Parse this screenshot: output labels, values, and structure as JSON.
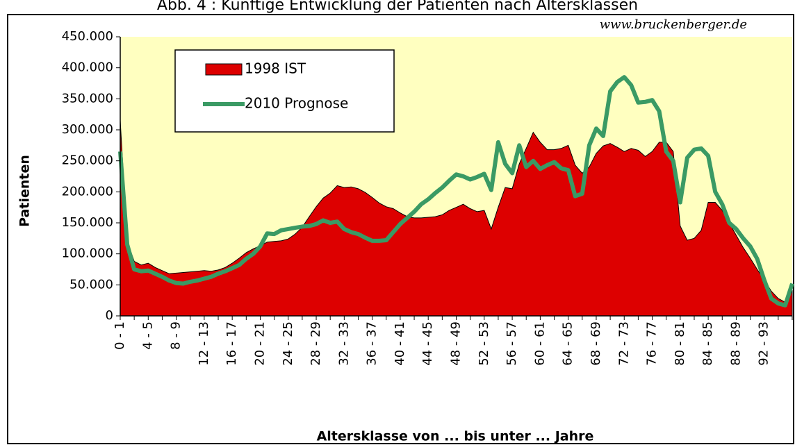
{
  "chart_data": {
    "type": "area",
    "title": "Abb. 4 : Künftige Entwicklung der Patienten nach Altersklassen",
    "watermark": "www.bruckenberger.de",
    "x_label": "Altersklasse von ... bis unter ... Jahre",
    "y_label": "Patienten",
    "categories": [
      "0 - 1",
      null,
      null,
      null,
      "4 - 5",
      null,
      null,
      null,
      "8 - 9",
      null,
      null,
      null,
      "12 - 13",
      null,
      null,
      null,
      "16 - 17",
      null,
      null,
      null,
      "20 - 21",
      null,
      null,
      null,
      "24 - 25",
      null,
      null,
      null,
      "28 - 29",
      null,
      null,
      null,
      "32 - 33",
      null,
      null,
      null,
      "36 - 37",
      null,
      null,
      null,
      "40 - 41",
      null,
      null,
      null,
      "44 - 45",
      null,
      null,
      null,
      "48 - 49",
      null,
      null,
      null,
      "52 - 53",
      null,
      null,
      null,
      "56 - 57",
      null,
      null,
      null,
      "60 - 61",
      null,
      null,
      null,
      "64 - 65",
      null,
      null,
      null,
      "68 - 69",
      null,
      null,
      null,
      "72 - 73",
      null,
      null,
      null,
      "76 - 77",
      null,
      null,
      null,
      "80 - 81",
      null,
      null,
      null,
      "84 - 85",
      null,
      null,
      null,
      "88 - 89",
      null,
      null,
      null,
      "92 - 93",
      null,
      null,
      null,
      null
    ],
    "series": [
      {
        "name": "1998 IST",
        "kind": "area",
        "color": "#dd0000",
        "values": [
          315000,
          120000,
          88000,
          82000,
          85000,
          78000,
          73000,
          68000,
          69000,
          70000,
          71000,
          72000,
          73000,
          72000,
          74000,
          78000,
          85000,
          93000,
          102000,
          108000,
          113000,
          119000,
          120000,
          121000,
          124000,
          132000,
          143000,
          160000,
          176000,
          190000,
          198000,
          210000,
          207000,
          208000,
          205000,
          199000,
          191000,
          182000,
          176000,
          173000,
          166000,
          160000,
          158000,
          158000,
          159000,
          160000,
          163000,
          170000,
          175000,
          180000,
          173000,
          168000,
          170000,
          140000,
          175000,
          207000,
          205000,
          245000,
          270000,
          296000,
          280000,
          268000,
          268000,
          270000,
          275000,
          243000,
          230000,
          240000,
          262000,
          274000,
          278000,
          272000,
          265000,
          270000,
          267000,
          257000,
          265000,
          280000,
          280000,
          265000,
          145000,
          122000,
          125000,
          138000,
          183000,
          183000,
          170000,
          150000,
          130000,
          110000,
          93000,
          75000,
          58000,
          40000,
          28000,
          22000,
          40000
        ]
      },
      {
        "name": "2010 Prognose",
        "kind": "line",
        "color": "#3a9a64",
        "values": [
          265000,
          115000,
          75000,
          72000,
          73000,
          68000,
          63000,
          57000,
          53000,
          52000,
          55000,
          57000,
          60000,
          63000,
          68000,
          72000,
          77000,
          82000,
          92000,
          100000,
          112000,
          133000,
          132000,
          138000,
          140000,
          142000,
          144000,
          145000,
          148000,
          154000,
          150000,
          152000,
          140000,
          135000,
          132000,
          126000,
          121000,
          121000,
          122000,
          135000,
          148000,
          158000,
          168000,
          180000,
          188000,
          198000,
          207000,
          218000,
          228000,
          225000,
          220000,
          224000,
          229000,
          203000,
          280000,
          245000,
          230000,
          275000,
          240000,
          250000,
          237000,
          243000,
          248000,
          238000,
          235000,
          193000,
          197000,
          275000,
          302000,
          290000,
          362000,
          377000,
          385000,
          372000,
          344000,
          345000,
          348000,
          330000,
          265000,
          250000,
          183000,
          255000,
          268000,
          270000,
          258000,
          200000,
          180000,
          150000,
          140000,
          125000,
          112000,
          92000,
          58000,
          28000,
          20000,
          17000,
          52000
        ]
      }
    ],
    "ylim": [
      0,
      450000
    ],
    "yticks": [
      0,
      {
        "value": 50000,
        "label": "50.000"
      },
      {
        "value": 100000,
        "label": "100.000"
      },
      {
        "value": 150000,
        "label": "150.000"
      },
      {
        "value": 200000,
        "label": "200.000"
      },
      {
        "value": 250000,
        "label": "250.000"
      },
      {
        "value": 300000,
        "label": "300.000"
      },
      {
        "value": 350000,
        "label": "350.000"
      },
      {
        "value": 400000,
        "label": "400.000"
      },
      {
        "value": 450000,
        "label": "450.000"
      }
    ],
    "grid": false,
    "plot_background": "#ffffc0"
  }
}
